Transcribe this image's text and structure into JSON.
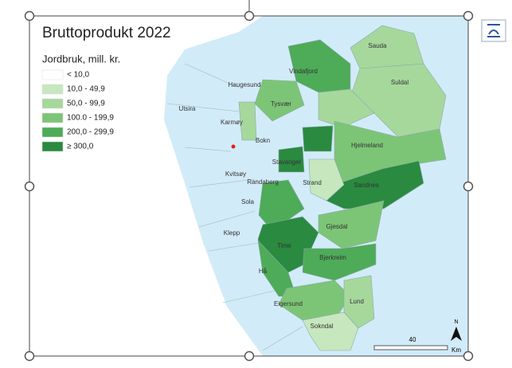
{
  "title": "Bruttoprodukt 2022",
  "legend": {
    "title": "Jordbruk, mill. kr.",
    "items": [
      {
        "label": "< 10,0",
        "color": "#ffffff"
      },
      {
        "label": "10,0 - 49,9",
        "color": "#c7e7bf"
      },
      {
        "label": "50,0 - 99,9",
        "color": "#a6d89c"
      },
      {
        "label": "100.0 - 199,9",
        "color": "#7cc576"
      },
      {
        "label": "200,0 - 299,9",
        "color": "#4eab58"
      },
      {
        "label": "≥ 300,0",
        "color": "#2a8a40"
      }
    ]
  },
  "places": [
    "Sauda",
    "Suldal",
    "Vindafjord",
    "Haugesund",
    "Tysvær",
    "Utsira",
    "Karmøy",
    "Bokn",
    "Hjelmeland",
    "Stavanger",
    "Kvitsøy",
    "Randaberg",
    "Strand",
    "Sandnes",
    "Sola",
    "Gjesdal",
    "Klepp",
    "Time",
    "Bjerkreim",
    "Hå",
    "Eigersund",
    "Lund",
    "Sokndal"
  ],
  "scale_bar": {
    "label": "40",
    "unit": "Km"
  },
  "north_arrow": "N"
}
